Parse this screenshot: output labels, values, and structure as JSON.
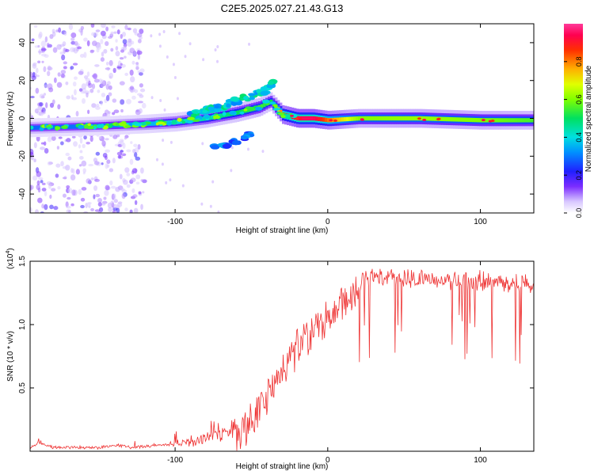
{
  "title": "C2E5.2025.027.21.43.G13",
  "colorbar": {
    "label": "Normalized spectral amplitude",
    "ticks": [
      "0.0",
      "0.2",
      "0.4",
      "0.6",
      "0.8"
    ],
    "tick_values": [
      0,
      0.2,
      0.4,
      0.6,
      0.8
    ]
  },
  "chart_data": [
    {
      "type": "heatmap",
      "xlabel": "Height of straight line (km)",
      "ylabel": "Frequency (Hz)",
      "xlim": [
        -195,
        135
      ],
      "ylim": [
        -50,
        50
      ],
      "x_ticks": [
        -100,
        0,
        100
      ],
      "x_tick_labels": [
        "-100",
        "0",
        "100"
      ],
      "y_ticks": [
        -40,
        -20,
        0,
        20,
        40
      ],
      "y_tick_labels": [
        "-40",
        "-20",
        "0",
        "20",
        "40"
      ],
      "ridge": {
        "x": [
          -195,
          -150,
          -120,
          -100,
          -80,
          -60,
          -45,
          -38,
          -30,
          -20,
          -10,
          0,
          20,
          60,
          100,
          135
        ],
        "y": [
          -5,
          -4,
          -3,
          -2,
          0,
          3,
          6,
          9,
          2,
          0,
          0,
          -1,
          0,
          0,
          -1,
          -1
        ],
        "amplitude": [
          0.28,
          0.3,
          0.35,
          0.4,
          0.45,
          0.5,
          0.55,
          0.5,
          0.85,
          0.95,
          0.95,
          0.8,
          0.6,
          0.62,
          0.6,
          0.55
        ]
      },
      "upper_branch": {
        "x": [
          -90,
          -70,
          -60,
          -50,
          -40,
          -35
        ],
        "y": [
          2,
          6,
          9,
          12,
          15,
          20
        ]
      },
      "lower_branch": {
        "x": [
          -75,
          -60,
          -50
        ],
        "y": [
          -16,
          -12,
          -8
        ]
      },
      "noise_region_x": [
        -195,
        -120
      ],
      "color_range": [
        0,
        1
      ]
    },
    {
      "type": "line",
      "xlabel": "Height of straight line (km)",
      "ylabel": "SNR (10 * v/v)",
      "y_multiplier": "(x10",
      "y_multiplier_exp": "4",
      "y_multiplier_close": ")",
      "xlim": [
        -195,
        135
      ],
      "ylim": [
        0,
        1.5
      ],
      "x_ticks": [
        -100,
        0,
        100
      ],
      "x_tick_labels": [
        "-100",
        "0",
        "100"
      ],
      "y_ticks": [
        0.5,
        1.0,
        1.5
      ],
      "y_tick_labels": [
        "0.5",
        "1.0",
        "1.5"
      ],
      "color": "#ee3333",
      "series": [
        {
          "x": [
            -195,
            -190,
            -180,
            -160,
            -150,
            -140,
            -130,
            -110,
            -90,
            -80,
            -70,
            -60,
            -50,
            -40,
            -35,
            -30,
            -25,
            -20,
            -15,
            -10,
            -5,
            0,
            5,
            10,
            15,
            20,
            25,
            30,
            40,
            50,
            60,
            70,
            80,
            90,
            100,
            110,
            120,
            135
          ],
          "y": [
            0.03,
            0.08,
            0.04,
            0.04,
            0.04,
            0.06,
            0.04,
            0.06,
            0.1,
            0.15,
            0.18,
            0.25,
            0.35,
            0.55,
            0.65,
            0.8,
            0.85,
            0.95,
            1.0,
            1.05,
            1.1,
            1.15,
            1.22,
            1.3,
            1.35,
            1.4,
            1.42,
            1.42,
            1.43,
            1.42,
            1.42,
            1.41,
            1.4,
            1.4,
            1.4,
            1.4,
            1.38,
            1.38
          ]
        }
      ]
    }
  ]
}
